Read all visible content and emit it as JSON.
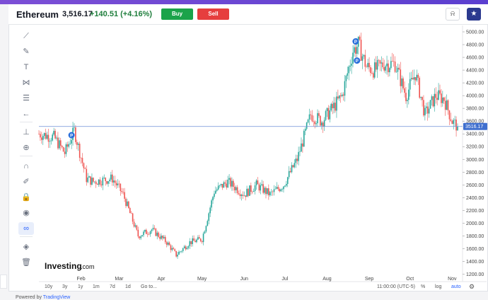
{
  "header": {
    "title": "Ethereum",
    "price": "3,516.17",
    "change": "+140.51 (+4.16%)",
    "buy_label": "Buy",
    "sell_label": "Sell",
    "alert_icon": "bell-alert-icon",
    "watchlist_icon": "star-icon"
  },
  "toolbar": {
    "items": [
      {
        "icon": "crosshair-lines-icon",
        "glyph": "⟋"
      },
      {
        "icon": "brush-icon",
        "glyph": "✎"
      },
      {
        "icon": "text-icon",
        "glyph": "T"
      },
      {
        "icon": "pattern-icon",
        "glyph": "⋈"
      },
      {
        "icon": "fib-levels-icon",
        "glyph": "☰"
      },
      {
        "icon": "back-arrow-icon",
        "glyph": "←"
      },
      {
        "icon": "ruler-icon",
        "glyph": "⊥"
      },
      {
        "icon": "zoom-in-icon",
        "glyph": "⊕"
      },
      {
        "icon": "magnet-icon",
        "glyph": "∩"
      },
      {
        "icon": "stay-drawing-icon",
        "glyph": "✐"
      },
      {
        "icon": "lock-icon",
        "glyph": "🔒"
      },
      {
        "icon": "eye-icon",
        "glyph": "◉"
      },
      {
        "icon": "link-icon",
        "glyph": "∞"
      },
      {
        "icon": "layers-icon",
        "glyph": "◈"
      },
      {
        "icon": "trash-icon",
        "glyph": "🗑"
      }
    ]
  },
  "bottom_bar": {
    "ranges": [
      "10y",
      "3y",
      "1y",
      "1m",
      "7d",
      "1d",
      "Go to..."
    ],
    "time": "11:00:00 (UTC-5)",
    "percent": "%",
    "log": "log",
    "auto": "auto",
    "settings_icon": "gear-icon"
  },
  "powered_by": {
    "prefix": "Powered by",
    "brand": "TradingView"
  },
  "watermark": {
    "brand": "Investing",
    "suffix": ".com"
  },
  "chart_data": {
    "type": "candlestick",
    "instrument": "Ethereum",
    "x_ticks": [
      "Feb",
      "Mar",
      "Apr",
      "May",
      "Jun",
      "Jul",
      "Aug",
      "Sep",
      "Oct",
      "Nov"
    ],
    "y_ticks": [
      1200,
      1400,
      1600,
      1800,
      2000,
      2200,
      2400,
      2600,
      2800,
      3000,
      3200,
      3400,
      3600,
      3800,
      4000,
      4200,
      4400,
      4600,
      4800,
      5000
    ],
    "ylim": [
      1150,
      5100
    ],
    "current_price": 3516.17,
    "current_price_label": "3516.17",
    "x": [
      "2022-01-01",
      "2022-01-12",
      "2022-01-20",
      "2022-01-27",
      "2022-02-05",
      "2022-02-10",
      "2022-02-24",
      "2022-03-04",
      "2022-03-15",
      "2022-03-25",
      "2022-04-05",
      "2022-04-12",
      "2022-04-22",
      "2022-05-01",
      "2022-05-10",
      "2022-05-20",
      "2022-06-01",
      "2022-06-10",
      "2022-06-20",
      "2022-06-30",
      "2022-07-10",
      "2022-07-20",
      "2022-07-28",
      "2022-08-05",
      "2022-08-12",
      "2022-08-20",
      "2022-08-24",
      "2022-08-30",
      "2022-09-05",
      "2022-09-12",
      "2022-09-20",
      "2022-09-28",
      "2022-10-05",
      "2022-10-12",
      "2022-10-20",
      "2022-10-26",
      "2022-11-01",
      "2022-11-05"
    ],
    "values": [
      3400,
      3350,
      3100,
      3450,
      2700,
      2650,
      2700,
      2450,
      1800,
      1900,
      1700,
      1500,
      1700,
      1750,
      2500,
      2650,
      2450,
      2600,
      2450,
      2600,
      3000,
      3700,
      3600,
      3800,
      4000,
      4700,
      4800,
      4450,
      4400,
      4500,
      4500,
      4000,
      4350,
      3700,
      4000,
      3950,
      3600,
      3516.17
    ],
    "markers": [
      {
        "label": "P",
        "x": "2022-01-25",
        "y": 3380
      },
      {
        "label": "P",
        "x": "2022-08-22",
        "y": 4850
      },
      {
        "label": "P",
        "x": "2022-08-23",
        "y": 4550
      }
    ]
  }
}
